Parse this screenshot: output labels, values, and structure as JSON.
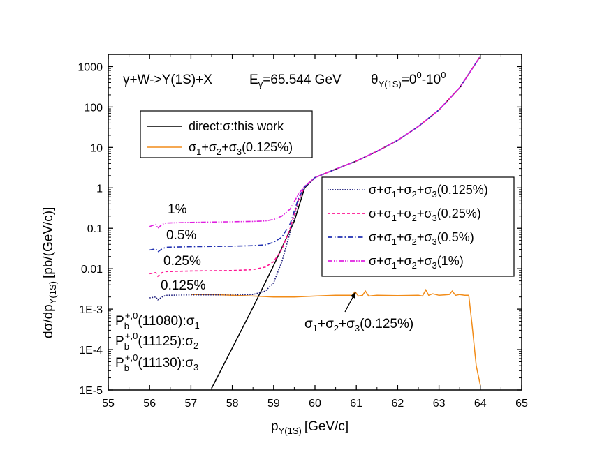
{
  "chart_data": {
    "type": "line",
    "xlabel_main": "p",
    "xlabel_sub": "Y(1S)",
    "xlabel_unit": "[GeV/c]",
    "ylabel_main": "dσ/dp",
    "ylabel_sub": "Y(1S)",
    "ylabel_unit": "[pb/(GeV/c)]",
    "xlim": [
      55,
      65
    ],
    "ylim": [
      1e-05,
      2000
    ],
    "yscale": "log",
    "x_ticks": [
      "55",
      "56",
      "57",
      "58",
      "59",
      "60",
      "61",
      "62",
      "63",
      "64",
      "65"
    ],
    "y_ticks": [
      "1E-5",
      "1E-4",
      "1E-3",
      "0.01",
      "0.1",
      "1",
      "10",
      "100",
      "1000"
    ],
    "annotations": {
      "reaction": "γ+W->Y(1S)+X",
      "energy_main": "E",
      "energy_sub": "γ",
      "energy_value": "=65.544 GeV",
      "angle_main": "θ",
      "angle_sub": "Y(1S)",
      "angle_eq": "=0",
      "angle_sup1": "0",
      "angle_dash": "-10",
      "angle_sup2": "0",
      "pct_1": "1%",
      "pct_05": "0.5%",
      "pct_025": "0.25%",
      "pct_0125": "0.125%",
      "state1_main": "P",
      "state1_sub": "b",
      "state1_sup": "+,0",
      "state1_rest": "(11080):σ",
      "state1_idx": "1",
      "state2_main": "P",
      "state2_sub": "b",
      "state2_sup": "+,0",
      "state2_rest": "(11125):σ",
      "state2_idx": "2",
      "state3_main": "P",
      "state3_sub": "b",
      "state3_sup": "+,0",
      "state3_rest": "(11130):σ",
      "state3_idx": "3",
      "arrow_label": "σ1+σ2+σ3(0.125%)"
    },
    "legend_left": [
      {
        "label": "direct:σ:this work",
        "color": "#000000",
        "dash": "solid"
      },
      {
        "label": "σ1+σ2+σ3(0.125%)",
        "color": "#F28C18",
        "dash": "solid"
      }
    ],
    "legend_right": [
      {
        "label": "σ+σ1+σ2+σ3(0.125%)",
        "color": "#1A1A7A",
        "dash": "dot"
      },
      {
        "label": "σ+σ1+σ2+σ3(0.25%)",
        "color": "#FF1493",
        "dash": "dash"
      },
      {
        "label": "σ+σ1+σ2+σ3(0.5%)",
        "color": "#1F2FB0",
        "dash": "dashdot"
      },
      {
        "label": "σ+σ1+σ2+σ3(1%)",
        "color": "#E020E0",
        "dash": "dashdotdot"
      }
    ],
    "series": [
      {
        "name": "direct:σ:this work",
        "color": "#000000",
        "dash": "solid",
        "x": [
          57.5,
          58.0,
          58.5,
          59.0,
          59.5,
          59.75,
          60.0,
          60.5,
          61.0,
          61.5,
          62.0,
          62.5,
          63.0,
          63.5,
          64.0
        ],
        "y": [
          1.1e-05,
          0.00011,
          0.0011,
          0.012,
          0.15,
          1.0,
          1.8,
          2.9,
          4.6,
          8.0,
          15,
          33,
          85,
          300,
          1800
        ]
      },
      {
        "name": "σ1+σ2+σ3(0.125%)",
        "color": "#F28C18",
        "dash": "solid",
        "x": [
          57.0,
          57.5,
          58.0,
          58.5,
          59.0,
          59.5,
          60.0,
          60.5,
          60.9,
          60.97,
          61.05,
          61.15,
          61.22,
          61.3,
          61.5,
          62.0,
          62.5,
          62.6,
          62.68,
          62.75,
          62.85,
          63.0,
          63.25,
          63.32,
          63.4,
          63.5,
          63.62,
          63.72,
          63.8,
          63.9,
          64.0
        ],
        "y": [
          0.0023,
          0.0023,
          0.0022,
          0.0021,
          0.002,
          0.002,
          0.0021,
          0.0022,
          0.0022,
          0.0027,
          0.0021,
          0.0022,
          0.0028,
          0.0021,
          0.0022,
          0.00215,
          0.0022,
          0.0021,
          0.003,
          0.0022,
          0.0024,
          0.0022,
          0.0023,
          0.0028,
          0.0022,
          0.0023,
          0.0022,
          0.0022,
          0.0004,
          4e-05,
          1.3e-05
        ]
      },
      {
        "name": "σ+σ1+σ2+σ3(0.125%)",
        "color": "#1A1A7A",
        "dash": "dot",
        "x": [
          56.0,
          56.15,
          56.2,
          56.3,
          56.4,
          57.0,
          58.0,
          58.5,
          58.8,
          59.0,
          59.2,
          59.4,
          59.6,
          59.75,
          60.0,
          60.5,
          61.0,
          61.5,
          62.0,
          62.5,
          63.0,
          63.5,
          64.0
        ],
        "y": [
          0.0019,
          0.002,
          0.0017,
          0.002,
          0.0022,
          0.00225,
          0.00225,
          0.0023,
          0.0028,
          0.0045,
          0.015,
          0.08,
          0.45,
          1.05,
          1.8,
          2.9,
          4.6,
          8.0,
          15,
          33,
          85,
          300,
          1800
        ]
      },
      {
        "name": "σ+σ1+σ2+σ3(0.25%)",
        "color": "#FF1493",
        "dash": "dash",
        "x": [
          56.0,
          56.15,
          56.2,
          56.3,
          56.4,
          57.0,
          58.0,
          58.5,
          58.8,
          59.0,
          59.2,
          59.4,
          59.6,
          59.75,
          60.0,
          60.5,
          61.0,
          61.5,
          62.0,
          62.5,
          63.0,
          63.5,
          64.0
        ],
        "y": [
          0.0075,
          0.008,
          0.0065,
          0.008,
          0.0085,
          0.0088,
          0.009,
          0.0095,
          0.011,
          0.015,
          0.03,
          0.1,
          0.5,
          1.05,
          1.8,
          2.9,
          4.6,
          8.0,
          15,
          33,
          85,
          300,
          1800
        ]
      },
      {
        "name": "σ+σ1+σ2+σ3(0.5%)",
        "color": "#1F2FB0",
        "dash": "dashdot",
        "x": [
          56.0,
          56.15,
          56.2,
          56.3,
          56.4,
          57.0,
          58.0,
          58.5,
          58.8,
          59.0,
          59.2,
          59.4,
          59.6,
          59.75,
          60.0,
          60.5,
          61.0,
          61.5,
          62.0,
          62.5,
          63.0,
          63.5,
          64.0
        ],
        "y": [
          0.029,
          0.031,
          0.026,
          0.031,
          0.034,
          0.035,
          0.036,
          0.037,
          0.039,
          0.045,
          0.06,
          0.13,
          0.55,
          1.05,
          1.8,
          2.9,
          4.6,
          8.0,
          15,
          33,
          85,
          300,
          1800
        ]
      },
      {
        "name": "σ+σ1+σ2+σ3(1%)",
        "color": "#E020E0",
        "dash": "dashdotdot",
        "x": [
          56.0,
          56.15,
          56.2,
          56.3,
          56.4,
          57.0,
          58.0,
          58.5,
          58.8,
          59.0,
          59.2,
          59.4,
          59.6,
          59.75,
          60.0,
          60.5,
          61.0,
          61.5,
          62.0,
          62.5,
          63.0,
          63.5,
          64.0
        ],
        "y": [
          0.11,
          0.125,
          0.1,
          0.125,
          0.135,
          0.14,
          0.145,
          0.148,
          0.152,
          0.165,
          0.2,
          0.3,
          0.7,
          1.1,
          1.8,
          2.9,
          4.6,
          8.0,
          15,
          33,
          85,
          300,
          1800
        ]
      }
    ]
  }
}
